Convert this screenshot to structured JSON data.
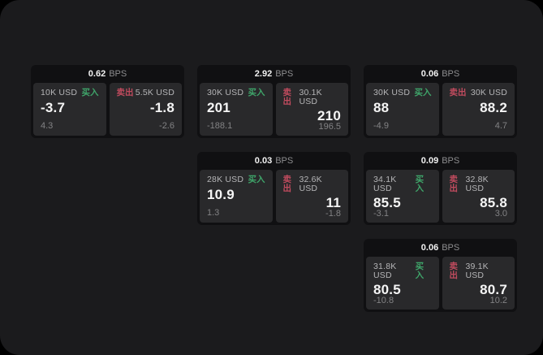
{
  "labels": {
    "bps_unit": "BPS",
    "buy": "买入",
    "sell": "卖出"
  },
  "colors": {
    "buy": "#3fa56a",
    "sell": "#c04b5e",
    "window_bg": "#1b1b1d",
    "card_bg": "#101012",
    "tile_bg": "#29292b"
  },
  "cards": [
    {
      "bps": "0.62",
      "row": 1,
      "col": 1,
      "buy": {
        "amount": "10K USD",
        "price": "-3.7",
        "delta": "4.3"
      },
      "sell": {
        "amount": "5.5K USD",
        "price": "-1.8",
        "delta": "-2.6"
      }
    },
    {
      "bps": "2.92",
      "row": 1,
      "col": 2,
      "buy": {
        "amount": "30K USD",
        "price": "201",
        "delta": "-188.1"
      },
      "sell": {
        "amount": "30.1K USD",
        "price": "210",
        "delta": "196.5"
      }
    },
    {
      "bps": "0.06",
      "row": 1,
      "col": 3,
      "buy": {
        "amount": "30K USD",
        "price": "88",
        "delta": "-4.9"
      },
      "sell": {
        "amount": "30K USD",
        "price": "88.2",
        "delta": "4.7"
      }
    },
    {
      "bps": "0.03",
      "row": 2,
      "col": 2,
      "buy": {
        "amount": "28K USD",
        "price": "10.9",
        "delta": "1.3"
      },
      "sell": {
        "amount": "32.6K USD",
        "price": "11",
        "delta": "-1.8"
      }
    },
    {
      "bps": "0.09",
      "row": 2,
      "col": 3,
      "buy": {
        "amount": "34.1K USD",
        "price": "85.5",
        "delta": "-3.1"
      },
      "sell": {
        "amount": "32.8K USD",
        "price": "85.8",
        "delta": "3.0"
      }
    },
    {
      "bps": "0.06",
      "row": 3,
      "col": 3,
      "buy": {
        "amount": "31.8K USD",
        "price": "80.5",
        "delta": "-10.8"
      },
      "sell": {
        "amount": "39.1K USD",
        "price": "80.7",
        "delta": "10.2"
      }
    }
  ]
}
